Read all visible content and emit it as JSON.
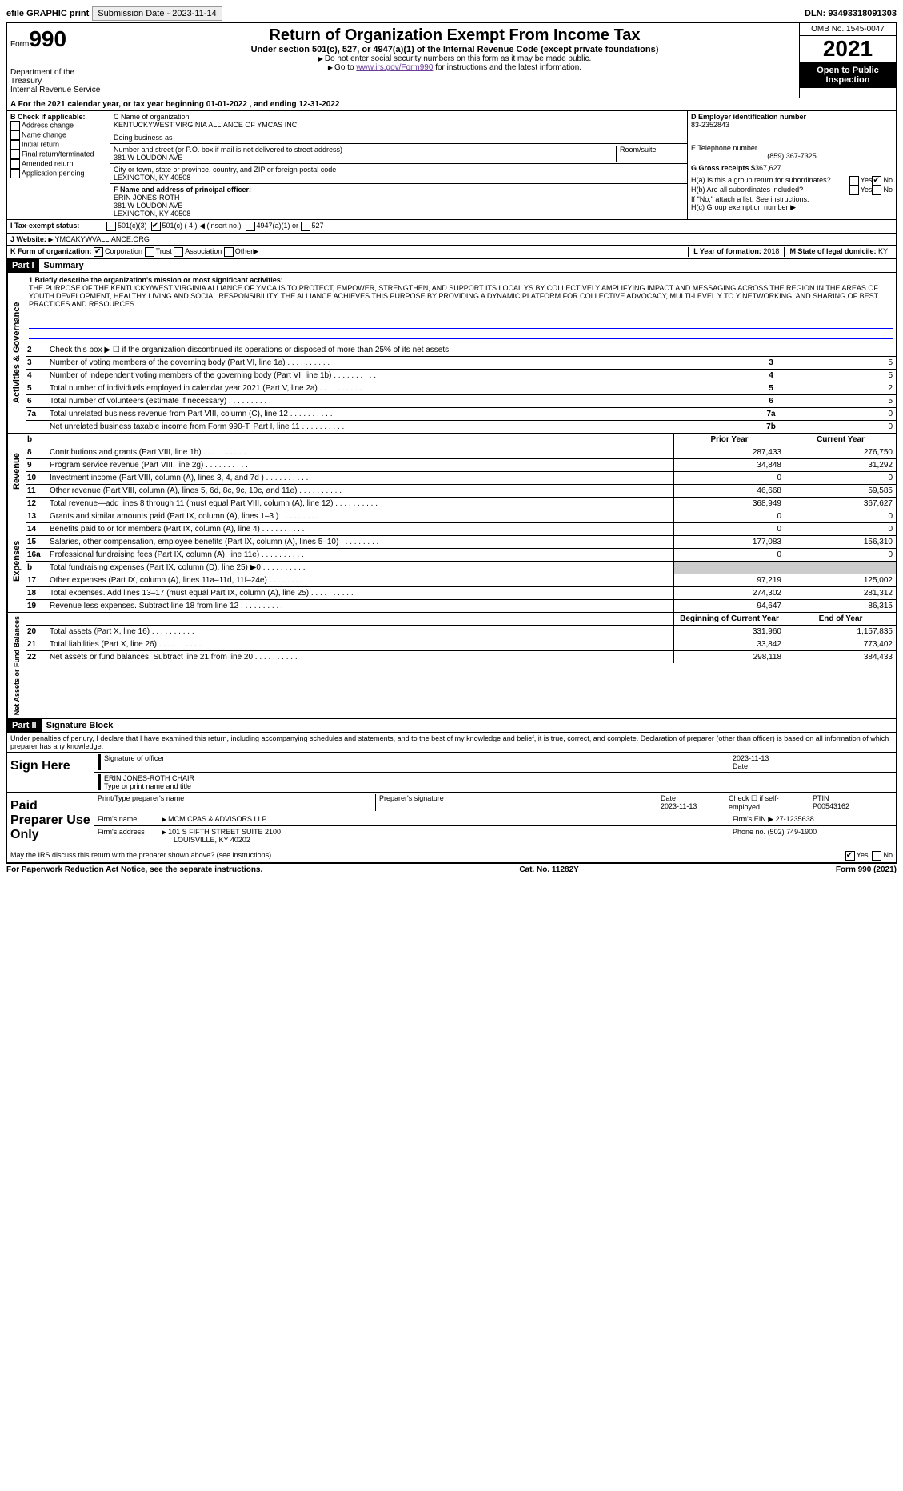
{
  "top": {
    "efile_label": "efile GRAPHIC print",
    "submission": "Submission Date - 2023-11-14",
    "dln": "DLN: 93493318091303"
  },
  "header": {
    "form_label": "Form",
    "form_num": "990",
    "dept": "Department of the Treasury",
    "irs": "Internal Revenue Service",
    "title": "Return of Organization Exempt From Income Tax",
    "sub": "Under section 501(c), 527, or 4947(a)(1) of the Internal Revenue Code (except private foundations)",
    "note1": "Do not enter social security numbers on this form as it may be made public.",
    "note2_pre": "Go to ",
    "note2_link": "www.irs.gov/Form990",
    "note2_post": " for instructions and the latest information.",
    "omb": "OMB No. 1545-0047",
    "year": "2021",
    "open": "Open to Public Inspection"
  },
  "rowA": "For the 2021 calendar year, or tax year beginning 01-01-2022   , and ending 12-31-2022",
  "colB": {
    "title": "B Check if applicable:",
    "items": [
      "Address change",
      "Name change",
      "Initial return",
      "Final return/terminated",
      "Amended return",
      "Application pending"
    ]
  },
  "colC": {
    "name_label": "C Name of organization",
    "name": "KENTUCKYWEST VIRGINIA ALLIANCE OF YMCAS INC",
    "dba_label": "Doing business as",
    "addr_label": "Number and street (or P.O. box if mail is not delivered to street address)",
    "addr": "381 W LOUDON AVE",
    "room_label": "Room/suite",
    "city_label": "City or town, state or province, country, and ZIP or foreign postal code",
    "city": "LEXINGTON, KY  40508",
    "officer_label": "F  Name and address of principal officer:",
    "officer_name": "ERIN JONES-ROTH",
    "officer_addr1": "381 W LOUDON AVE",
    "officer_addr2": "LEXINGTON, KY  40508"
  },
  "colD": {
    "ein_label": "D Employer identification number",
    "ein": "83-2352843",
    "phone_label": "E Telephone number",
    "phone": "(859) 367-7325",
    "gross_label": "G Gross receipts $",
    "gross": "367,627",
    "ha": "H(a)  Is this a group return for subordinates?",
    "hb": "H(b)  Are all subordinates included?",
    "hb_note": "If \"No,\" attach a list. See instructions.",
    "hc": "H(c)  Group exemption number",
    "yes": "Yes",
    "no": "No"
  },
  "rowI": {
    "label": "I  Tax-exempt status:",
    "opts": [
      "501(c)(3)",
      "501(c) ( 4 ) ◀ (insert no.)",
      "4947(a)(1) or",
      "527"
    ]
  },
  "rowJ": {
    "label": "J  Website:",
    "value": "YMCAKYWVALLIANCE.ORG"
  },
  "rowK": {
    "label": "K Form of organization:",
    "opts": [
      "Corporation",
      "Trust",
      "Association",
      "Other"
    ],
    "L_label": "L Year of formation:",
    "L_val": "2018",
    "M_label": "M State of legal domicile:",
    "M_val": "KY"
  },
  "parts": {
    "p1": "Part I",
    "p1_title": "Summary",
    "p2": "Part II",
    "p2_title": "Signature Block"
  },
  "summary": {
    "mission_label": "1  Briefly describe the organization's mission or most significant activities:",
    "mission": "THE PURPOSE OF THE KENTUCKY/WEST VIRGINIA ALLIANCE OF YMCA IS TO PROTECT, EMPOWER, STRENGTHEN, AND SUPPORT ITS LOCAL YS BY COLLECTIVELY AMPLIFYING IMPACT AND MESSAGING ACROSS THE REGION IN THE AREAS OF YOUTH DEVELOPMENT, HEALTHY LIVING AND SOCIAL RESPONSIBILITY. THE ALLIANCE ACHIEVES THIS PURPOSE BY PROVIDING A DYNAMIC PLATFORM FOR COLLECTIVE ADVOCACY, MULTI-LEVEL Y TO Y NETWORKING, AND SHARING OF BEST PRACTICES AND RESOURCES.",
    "line2": "Check this box ▶ ☐  if the organization discontinued its operations or disposed of more than 25% of its net assets.",
    "lines_single": [
      {
        "n": "3",
        "t": "Number of voting members of the governing body (Part VI, line 1a)",
        "b": "3",
        "v": "5"
      },
      {
        "n": "4",
        "t": "Number of independent voting members of the governing body (Part VI, line 1b)",
        "b": "4",
        "v": "5"
      },
      {
        "n": "5",
        "t": "Total number of individuals employed in calendar year 2021 (Part V, line 2a)",
        "b": "5",
        "v": "2"
      },
      {
        "n": "6",
        "t": "Total number of volunteers (estimate if necessary)",
        "b": "6",
        "v": "5"
      },
      {
        "n": "7a",
        "t": "Total unrelated business revenue from Part VIII, column (C), line 12",
        "b": "7a",
        "v": "0"
      },
      {
        "n": "",
        "t": "Net unrelated business taxable income from Form 990-T, Part I, line 11",
        "b": "7b",
        "v": "0"
      }
    ],
    "col_prior": "Prior Year",
    "col_current": "Current Year",
    "col_begin": "Beginning of Current Year",
    "col_end": "End of Year",
    "revenue": [
      {
        "n": "8",
        "t": "Contributions and grants (Part VIII, line 1h)",
        "p": "287,433",
        "c": "276,750"
      },
      {
        "n": "9",
        "t": "Program service revenue (Part VIII, line 2g)",
        "p": "34,848",
        "c": "31,292"
      },
      {
        "n": "10",
        "t": "Investment income (Part VIII, column (A), lines 3, 4, and 7d )",
        "p": "0",
        "c": "0"
      },
      {
        "n": "11",
        "t": "Other revenue (Part VIII, column (A), lines 5, 6d, 8c, 9c, 10c, and 11e)",
        "p": "46,668",
        "c": "59,585"
      },
      {
        "n": "12",
        "t": "Total revenue—add lines 8 through 11 (must equal Part VIII, column (A), line 12)",
        "p": "368,949",
        "c": "367,627"
      }
    ],
    "expenses": [
      {
        "n": "13",
        "t": "Grants and similar amounts paid (Part IX, column (A), lines 1–3 )",
        "p": "0",
        "c": "0"
      },
      {
        "n": "14",
        "t": "Benefits paid to or for members (Part IX, column (A), line 4)",
        "p": "0",
        "c": "0"
      },
      {
        "n": "15",
        "t": "Salaries, other compensation, employee benefits (Part IX, column (A), lines 5–10)",
        "p": "177,083",
        "c": "156,310"
      },
      {
        "n": "16a",
        "t": "Professional fundraising fees (Part IX, column (A), line 11e)",
        "p": "0",
        "c": "0"
      },
      {
        "n": "b",
        "t": "Total fundraising expenses (Part IX, column (D), line 25) ▶0",
        "p": "shade",
        "c": "shade"
      },
      {
        "n": "17",
        "t": "Other expenses (Part IX, column (A), lines 11a–11d, 11f–24e)",
        "p": "97,219",
        "c": "125,002"
      },
      {
        "n": "18",
        "t": "Total expenses. Add lines 13–17 (must equal Part IX, column (A), line 25)",
        "p": "274,302",
        "c": "281,312"
      },
      {
        "n": "19",
        "t": "Revenue less expenses. Subtract line 18 from line 12",
        "p": "94,647",
        "c": "86,315"
      }
    ],
    "netassets": [
      {
        "n": "20",
        "t": "Total assets (Part X, line 16)",
        "p": "331,960",
        "c": "1,157,835"
      },
      {
        "n": "21",
        "t": "Total liabilities (Part X, line 26)",
        "p": "33,842",
        "c": "773,402"
      },
      {
        "n": "22",
        "t": "Net assets or fund balances. Subtract line 21 from line 20",
        "p": "298,118",
        "c": "384,433"
      }
    ]
  },
  "sig": {
    "declaration": "Under penalties of perjury, I declare that I have examined this return, including accompanying schedules and statements, and to the best of my knowledge and belief, it is true, correct, and complete. Declaration of preparer (other than officer) is based on all information of which preparer has any knowledge.",
    "sign_here": "Sign Here",
    "sig_officer": "Signature of officer",
    "date1": "2023-11-13",
    "date_label": "Date",
    "officer_name": "ERIN JONES-ROTH  CHAIR",
    "type_name": "Type or print name and title",
    "paid": "Paid Preparer Use Only",
    "prep_name_label": "Print/Type preparer's name",
    "prep_sig_label": "Preparer's signature",
    "date2": "2023-11-13",
    "check_self": "Check ☐ if self-employed",
    "ptin_label": "PTIN",
    "ptin": "P00543162",
    "firm_name_label": "Firm's name",
    "firm_name": "MCM CPAS & ADVISORS LLP",
    "firm_ein_label": "Firm's EIN",
    "firm_ein": "27-1235638",
    "firm_addr_label": "Firm's address",
    "firm_addr1": "101 S FIFTH STREET SUITE 2100",
    "firm_addr2": "LOUISVILLE, KY  40202",
    "phone_label": "Phone no.",
    "phone": "(502) 749-1900",
    "discuss": "May the IRS discuss this return with the preparer shown above? (see instructions)"
  },
  "footer": {
    "notice": "For Paperwork Reduction Act Notice, see the separate instructions.",
    "cat": "Cat. No. 11282Y",
    "form": "Form 990 (2021)"
  },
  "labels": {
    "vert_gov": "Activities & Governance",
    "vert_rev": "Revenue",
    "vert_exp": "Expenses",
    "vert_net": "Net Assets or Fund Balances",
    "b_row": "b"
  }
}
